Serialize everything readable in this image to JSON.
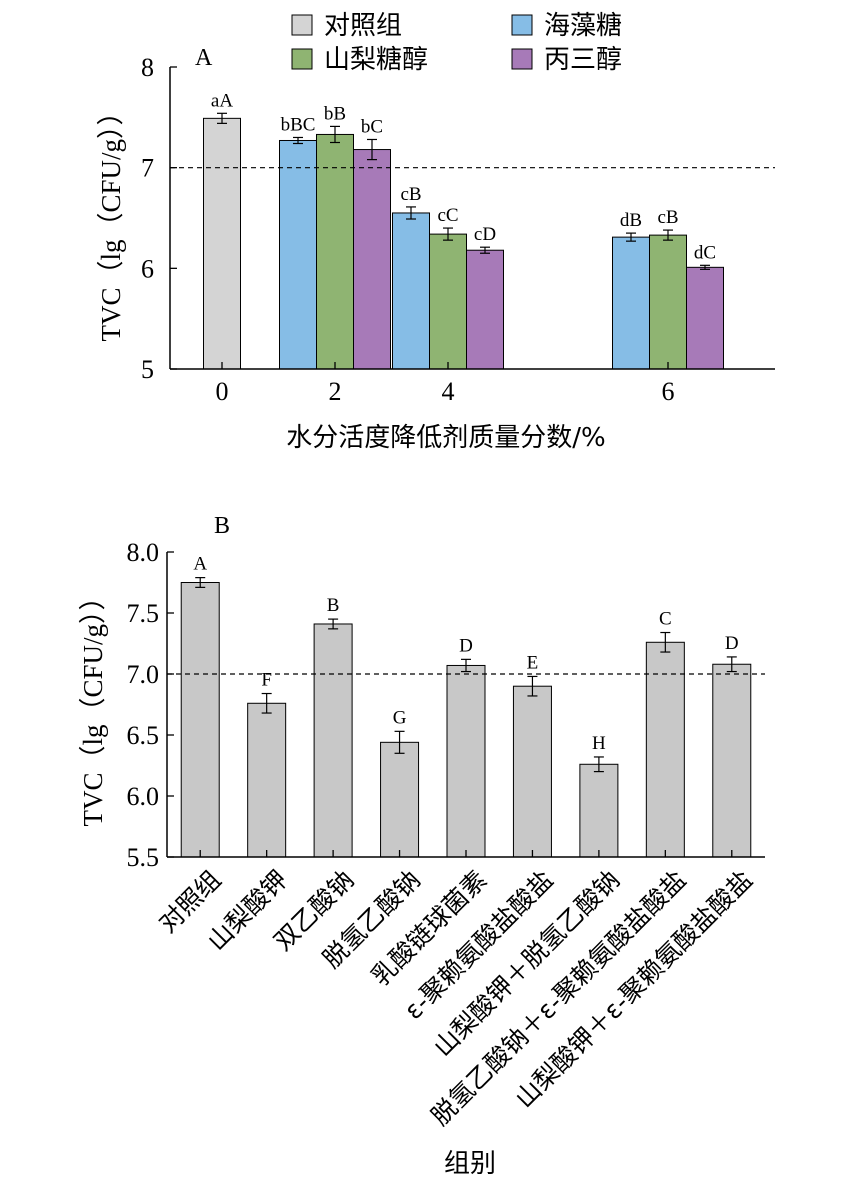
{
  "colors": {
    "axis": "#000000",
    "bar_edge": "#000000",
    "control": "#d4d4d4",
    "trehalose": "#86bde6",
    "sorbitol": "#8fb472",
    "glycerol": "#a77ab8",
    "single_bar": "#c8c8c8"
  },
  "chart_data": [
    {
      "type": "bar",
      "panel_label": "A",
      "ylabel": "TVC（lg（CFU/g））",
      "xlabel": "水分活度降低剂质量分数/%",
      "ylim": [
        5,
        8
      ],
      "yticks": [
        "5",
        "6",
        "7",
        "8"
      ],
      "reference_line": 7,
      "legend_position": "top",
      "categories": [
        "0",
        "2",
        "4",
        "6"
      ],
      "series": [
        {
          "name": "对照组",
          "color": "#d4d4d4",
          "values": [
            7.49,
            null,
            null,
            null
          ],
          "errors": [
            0.05,
            null,
            null,
            null
          ],
          "labels": [
            "aA",
            "",
            "",
            ""
          ]
        },
        {
          "name": "海藻糖",
          "color": "#86bde6",
          "values": [
            null,
            7.27,
            6.55,
            6.31
          ],
          "errors": [
            null,
            0.03,
            0.06,
            0.04
          ],
          "labels": [
            "",
            "bBC",
            "cB",
            "dB"
          ]
        },
        {
          "name": "山梨糖醇",
          "color": "#8fb472",
          "values": [
            null,
            7.33,
            6.34,
            6.33
          ],
          "errors": [
            null,
            0.08,
            0.06,
            0.05
          ],
          "labels": [
            "",
            "bB",
            "cC",
            "cB"
          ]
        },
        {
          "name": "丙三醇",
          "color": "#a77ab8",
          "values": [
            null,
            7.18,
            6.18,
            6.01
          ],
          "errors": [
            null,
            0.1,
            0.03,
            0.02
          ],
          "labels": [
            "",
            "bC",
            "cD",
            "dC"
          ]
        }
      ]
    },
    {
      "type": "bar",
      "panel_label": "B",
      "ylabel": "TVC（lg（CFU/g））",
      "xlabel": "组别",
      "ylim": [
        5.5,
        8.0
      ],
      "yticks": [
        "5.5",
        "6.0",
        "6.5",
        "7.0",
        "7.5",
        "8.0"
      ],
      "reference_line": 7.0,
      "categories": [
        "对照组",
        "山梨酸钾",
        "双乙酸钠",
        "脱氢乙酸钠",
        "乳酸链球菌素",
        "ε-聚赖氨酸盐酸盐",
        "山梨酸钾＋脱氢乙酸钠",
        "脱氢乙酸钠＋ε-聚赖氨酸盐酸盐",
        "山梨酸钾＋ε-聚赖氨酸盐酸盐"
      ],
      "values": [
        7.75,
        6.76,
        7.41,
        6.44,
        7.07,
        6.9,
        6.26,
        7.26,
        7.08
      ],
      "errors": [
        0.04,
        0.08,
        0.04,
        0.09,
        0.05,
        0.08,
        0.06,
        0.08,
        0.06
      ],
      "labels": [
        "A",
        "F",
        "B",
        "G",
        "D",
        "E",
        "H",
        "C",
        "D"
      ]
    }
  ]
}
